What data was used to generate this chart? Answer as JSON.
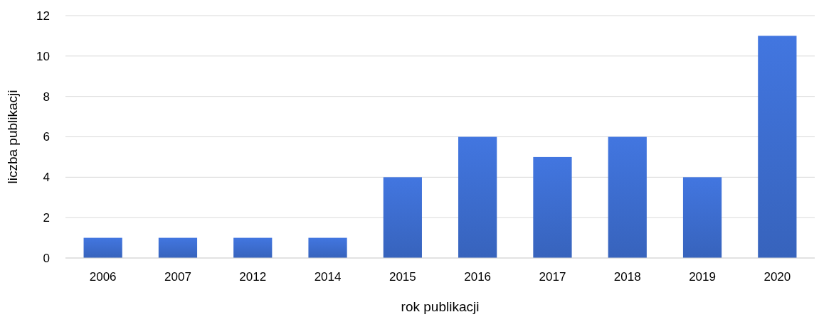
{
  "chart_data": {
    "type": "bar",
    "xlabel": "rok publikacji",
    "ylabel": "liczba publikacji",
    "categories": [
      "2006",
      "2007",
      "2012",
      "2014",
      "2015",
      "2016",
      "2017",
      "2018",
      "2019",
      "2020"
    ],
    "values": [
      1,
      1,
      1,
      1,
      4,
      6,
      5,
      6,
      4,
      11
    ],
    "color": "#3a68c6",
    "ylim": [
      0,
      12
    ],
    "yticks": [
      0,
      2,
      4,
      6,
      8,
      10,
      12
    ],
    "grid": "y"
  }
}
